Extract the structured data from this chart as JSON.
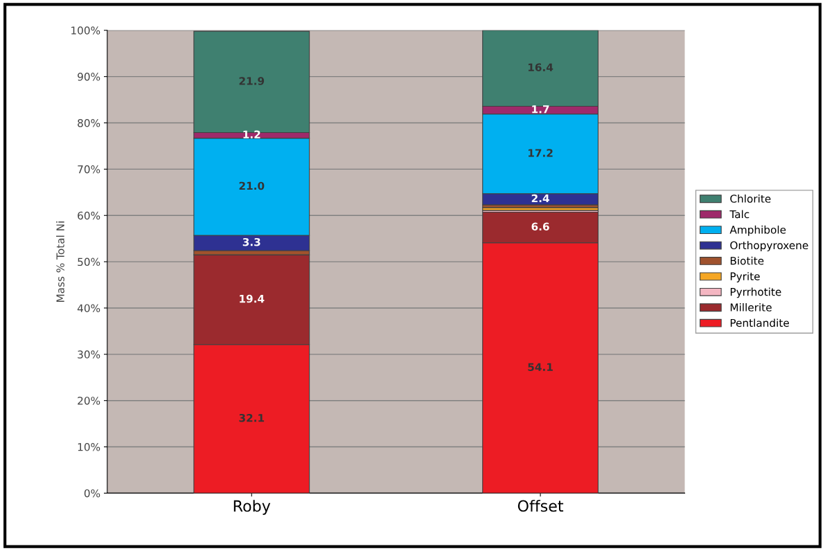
{
  "chart_data": {
    "type": "bar",
    "stacked": true,
    "ylabel": "Mass % Total Ni",
    "categories": [
      "Roby",
      "Offset"
    ],
    "ylim": [
      0,
      100
    ],
    "yticks": [
      {
        "value": 0,
        "label": "0%"
      },
      {
        "value": 10,
        "label": "10%"
      },
      {
        "value": 20,
        "label": "20%"
      },
      {
        "value": 30,
        "label": "30%"
      },
      {
        "value": 40,
        "label": "40%"
      },
      {
        "value": 50,
        "label": "50%"
      },
      {
        "value": 60,
        "label": "60%"
      },
      {
        "value": 70,
        "label": "70%"
      },
      {
        "value": 80,
        "label": "80%"
      },
      {
        "value": 90,
        "label": "90%"
      },
      {
        "value": 100,
        "label": "100%"
      }
    ],
    "grid": "y",
    "legend": "right",
    "series": [
      {
        "name": "Pentlandite",
        "color": "#ed1c24",
        "values": [
          32.1,
          54.1
        ],
        "value_labels": [
          "32.1",
          "54.1"
        ]
      },
      {
        "name": "Millerite",
        "color": "#9b2a2e",
        "values": [
          19.4,
          6.6
        ],
        "value_labels": [
          "19.4",
          "6.6"
        ]
      },
      {
        "name": "Pyrrhotite",
        "color": "#f4b6c2",
        "values": [
          null,
          0.4
        ],
        "value_labels": [
          null,
          null
        ]
      },
      {
        "name": "Pyrite",
        "color": "#f5a623",
        "values": [
          null,
          0.6
        ],
        "value_labels": [
          null,
          null
        ]
      },
      {
        "name": "Biotite",
        "color": "#a0522d",
        "values": [
          0.9,
          0.6
        ],
        "value_labels": [
          null,
          null
        ]
      },
      {
        "name": "Orthopyroxene",
        "color": "#2e3192",
        "values": [
          3.3,
          2.4
        ],
        "value_labels": [
          "3.3",
          "2.4"
        ]
      },
      {
        "name": "Amphibole",
        "color": "#00b0f0",
        "values": [
          21.0,
          17.2
        ],
        "value_labels": [
          "21.0",
          "17.2"
        ]
      },
      {
        "name": "Talc",
        "color": "#9e2a6a",
        "values": [
          1.2,
          1.7
        ],
        "value_labels": [
          "1.2",
          "1.7"
        ]
      },
      {
        "name": "Chlorite",
        "color": "#3f8070",
        "values": [
          21.9,
          16.4
        ],
        "value_labels": [
          "21.9",
          "16.4"
        ]
      }
    ]
  }
}
